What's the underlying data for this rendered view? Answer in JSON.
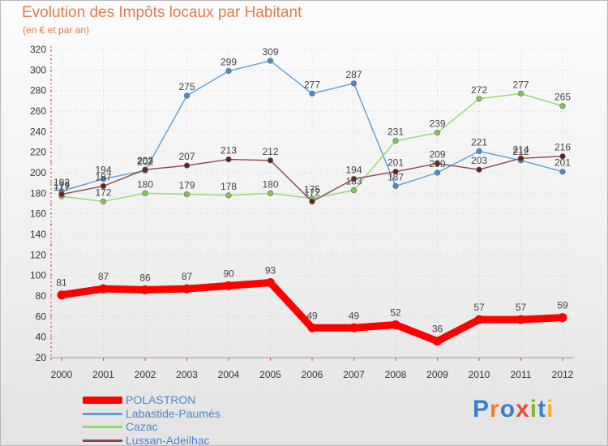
{
  "title": "Evolution des Impôts locaux par Habitant",
  "subtitle": "(en € et par an)",
  "logo_text": "Proxiti",
  "chart_data": {
    "type": "line",
    "title": "Evolution des Impôts locaux par Habitant",
    "ylabel": "(en € et par an)",
    "xlabel": "",
    "categories": [
      "2000",
      "2001",
      "2002",
      "2003",
      "2004",
      "2005",
      "2006",
      "2007",
      "2008",
      "2009",
      "2010",
      "2011",
      "2012"
    ],
    "yticks": [
      20,
      40,
      60,
      80,
      100,
      120,
      140,
      160,
      180,
      200,
      220,
      240,
      260,
      280,
      300,
      320
    ],
    "ylim": [
      20,
      320
    ],
    "grid": true,
    "legend_position": "bottom-left",
    "series": [
      {
        "name": "Labastide-Paumès",
        "color": "#5e9ed8",
        "point_color": "#4a8ad0",
        "label_pos": "above",
        "values": [
          182,
          194,
          202,
          275,
          299,
          309,
          277,
          287,
          187,
          200,
          221,
          212,
          201
        ]
      },
      {
        "name": "Cazac",
        "color": "#93d86a",
        "point_color": "#7ec65a",
        "label_pos": "above",
        "values": [
          177,
          172,
          180,
          179,
          178,
          180,
          175,
          183,
          231,
          239,
          272,
          277,
          265
        ]
      },
      {
        "name": "Lussan-Adeilhac",
        "color": "#874b4b",
        "point_color": "#6b1f1f",
        "label_pos": "above",
        "values": [
          179,
          187,
          203,
          207,
          213,
          212,
          172,
          194,
          201,
          209,
          203,
          214,
          216
        ]
      },
      {
        "name": "POLASTRON",
        "color": "#ff0000",
        "point_color": "#ff0000",
        "label_pos": "above",
        "bold": true,
        "values": [
          81,
          87,
          86,
          87,
          90,
          93,
          49,
          49,
          52,
          36,
          57,
          57,
          59
        ]
      }
    ]
  }
}
